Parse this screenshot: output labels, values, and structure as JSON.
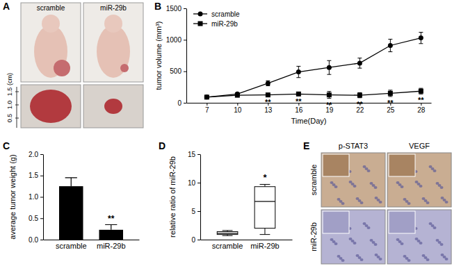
{
  "chart_data": [
    {
      "panel": "B",
      "type": "line",
      "x_label": "Time(Day)",
      "y_label": "tumor volume (mm³)",
      "x": [
        7,
        10,
        13,
        16,
        19,
        22,
        25,
        28
      ],
      "xlim": [
        5,
        29
      ],
      "xticks": [
        7,
        10,
        13,
        16,
        19,
        22,
        25,
        28
      ],
      "ylim": [
        0,
        1500
      ],
      "yticks": [
        0,
        500,
        1000,
        1500
      ],
      "legend": "top-left",
      "series": [
        {
          "name": "scramble",
          "color": "#000000",
          "marker": "circle",
          "values": [
            90,
            140,
            310,
            490,
            560,
            630,
            910,
            1030
          ],
          "errors": [
            5,
            20,
            40,
            90,
            110,
            80,
            100,
            90
          ]
        },
        {
          "name": "miR-29b",
          "color": "#000000",
          "marker": "square",
          "values": [
            90,
            120,
            125,
            140,
            125,
            120,
            150,
            185
          ],
          "errors": [
            5,
            10,
            15,
            20,
            55,
            40,
            50,
            45
          ]
        }
      ],
      "significance": [
        null,
        null,
        "**",
        "**",
        "**",
        "**",
        "**",
        "**"
      ]
    },
    {
      "panel": "C",
      "type": "bar",
      "y_label": "average tumor weight (g)",
      "categories": [
        "scramble",
        "miR-29b"
      ],
      "values": [
        1.25,
        0.23
      ],
      "errors": [
        0.2,
        0.12
      ],
      "color": "#000000",
      "ylim": [
        0,
        2
      ],
      "yticks": [
        {
          "value": 0,
          "label": "0.0"
        },
        {
          "value": 0.5,
          "label": "0.5"
        },
        {
          "value": 1,
          "label": "1.0"
        },
        {
          "value": 1.5,
          "label": "1.5"
        },
        {
          "value": 2,
          "label": "2.0"
        }
      ],
      "significance": [
        null,
        "**"
      ]
    },
    {
      "panel": "D",
      "type": "box",
      "y_label": "relative ratio of miR-29b",
      "categories": [
        "scramble",
        "miR-29b"
      ],
      "boxes": [
        {
          "min": 0.7,
          "q1": 0.9,
          "median": 1.1,
          "q3": 1.4,
          "max": 1.6
        },
        {
          "min": 0.9,
          "q1": 2.0,
          "median": 6.7,
          "q3": 9.3,
          "max": 9.7
        }
      ],
      "color": "#000000",
      "ylim": [
        0,
        15
      ],
      "yticks": [
        0,
        5,
        10,
        15
      ],
      "significance": [
        null,
        "*"
      ]
    }
  ],
  "images": [
    {
      "panel": "A",
      "columns": [
        "scramble",
        "miR-29b"
      ],
      "scale_ticks": [
        {
          "value": 1.5,
          "label": "1.5"
        },
        {
          "value": 1.0,
          "label": "1.0"
        },
        {
          "value": 0.5,
          "label": "0.5"
        }
      ],
      "scale_unit": "(cm)"
    },
    {
      "panel": "E",
      "columns": [
        "p-STAT3",
        "VEGF"
      ],
      "rows": [
        "scramble",
        "miR-29b"
      ]
    }
  ]
}
